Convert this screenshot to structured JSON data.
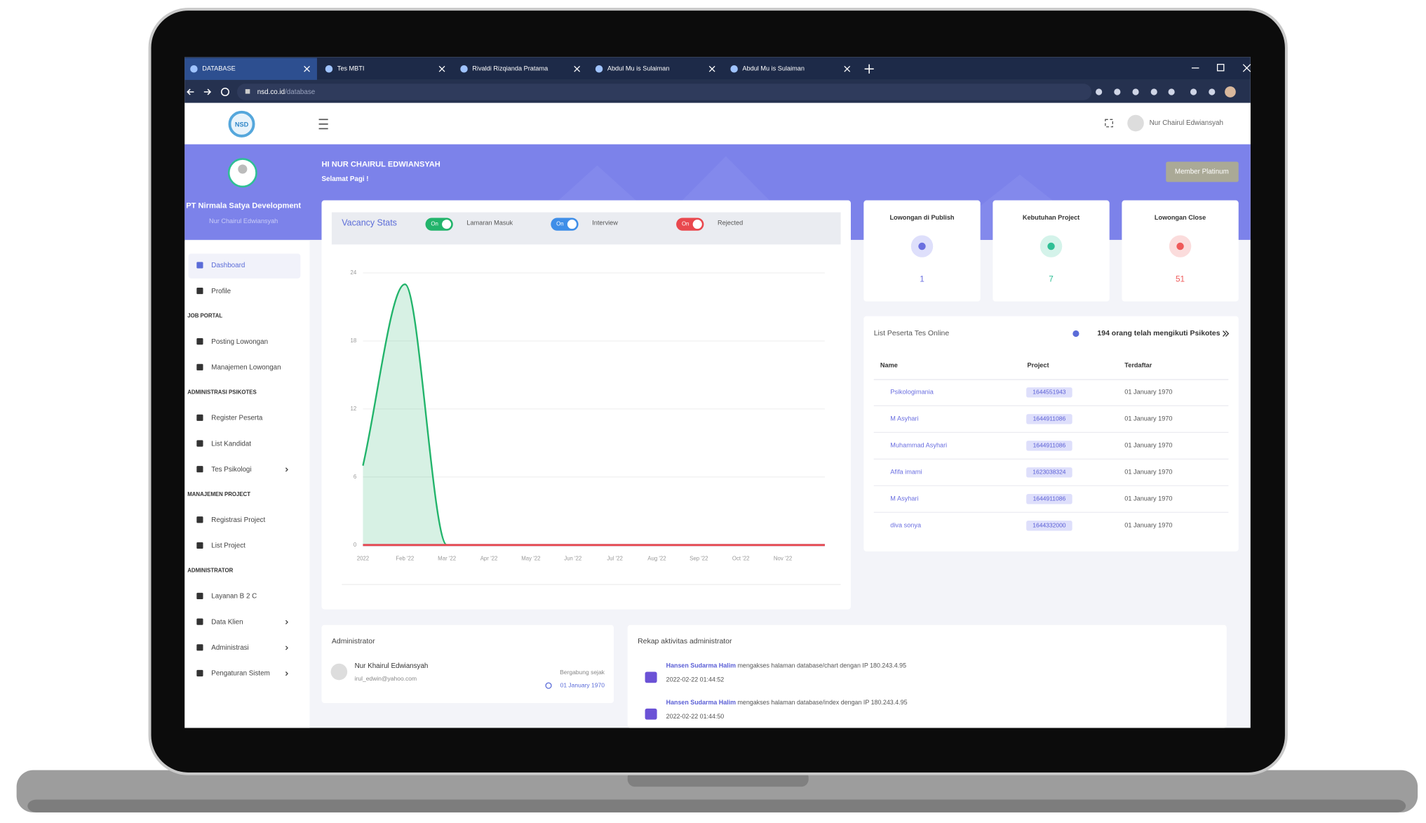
{
  "browser": {
    "tabs": [
      "DATABASE",
      "Tes MBTI",
      "Rivaldi Rizqianda Pratama",
      "Abdul Mu is Sulaiman",
      "Abdul Mu is Sulaiman"
    ],
    "url_host": "nsd.co.id",
    "url_path": "/database"
  },
  "header": {
    "logo": "NSD",
    "user": "Nur Chairul Edwiansyah"
  },
  "banner": {
    "greeting": "HI NUR CHAIRUL EDWIANSYAH",
    "subgreeting": "Selamat Pagi !",
    "badge": "Member Platinum"
  },
  "sidebar": {
    "company": "PT Nirmala Satya Development",
    "user": "Nur Chairul Edwiansyah",
    "sections": [
      {
        "items": [
          {
            "label": "Dashboard",
            "active": true
          },
          {
            "label": "Profile"
          }
        ]
      },
      {
        "heading": "JOB PORTAL",
        "items": [
          {
            "label": "Posting Lowongan"
          },
          {
            "label": "Manajemen Lowongan"
          }
        ]
      },
      {
        "heading": "ADMINISTRASI PSIKOTES",
        "items": [
          {
            "label": "Register Peserta"
          },
          {
            "label": "List Kandidat"
          },
          {
            "label": "Tes Psikologi",
            "submenu": true
          }
        ]
      },
      {
        "heading": "MANAJEMEN PROJECT",
        "items": [
          {
            "label": "Registrasi Project"
          },
          {
            "label": "List Project"
          }
        ]
      },
      {
        "heading": "ADMINISTRATOR",
        "items": [
          {
            "label": "Layanan B 2 C"
          },
          {
            "label": "Data Klien",
            "submenu": true
          },
          {
            "label": "Administrasi",
            "submenu": true
          },
          {
            "label": "Pengaturan Sistem",
            "submenu": true
          }
        ]
      }
    ]
  },
  "chart": {
    "type": "area",
    "title": "Vacancy Stats",
    "categories": [
      "2022",
      "Feb '22",
      "Mar '22",
      "Apr '22",
      "May '22",
      "Jun '22",
      "Jul '22",
      "Aug '22",
      "Sep '22",
      "Oct '22",
      "Nov '22",
      null
    ],
    "series": [
      {
        "name": "Lamaran Masuk",
        "toggle": "On",
        "color": "#22b46b",
        "fill": true,
        "values": [
          7,
          23,
          0,
          0,
          0,
          0,
          0,
          0,
          0,
          0,
          0,
          0
        ]
      },
      {
        "name": "Interview",
        "toggle": "On",
        "color": "#3f8ee8",
        "fill": false,
        "values": [
          0,
          0,
          0,
          0,
          0,
          0,
          0,
          0,
          0,
          0,
          0,
          0
        ]
      },
      {
        "name": "Rejected",
        "toggle": "On",
        "color": "#e9484e",
        "fill": false,
        "values": [
          0,
          0,
          0,
          0,
          0,
          0,
          0,
          0,
          0,
          0,
          0,
          0
        ]
      }
    ],
    "ylim": [
      0,
      24
    ],
    "yticks": [
      0,
      6,
      12,
      18,
      24
    ],
    "grid": true
  },
  "stats": [
    {
      "label": "Lowongan di Publish",
      "value": 1,
      "color": "#6b6fe0",
      "bg": "#dedffb"
    },
    {
      "label": "Kebutuhan Project",
      "value": 7,
      "color": "#2fbf95",
      "bg": "#d4f3ea"
    },
    {
      "label": "Lowongan Close",
      "value": 51,
      "color": "#ef5a5a",
      "bg": "#fbdcdc"
    }
  ],
  "table": {
    "title": "List Peserta Tes Online",
    "summary": "194 orang telah mengikuti Psikotes",
    "columns": [
      "Name",
      "Project",
      "Terdaftar"
    ],
    "rows": [
      [
        "Psikologimania",
        "1644551943",
        "01 January 1970"
      ],
      [
        "M Asyhari",
        "1644911086",
        "01 January 1970"
      ],
      [
        "Muhammad Asyhari",
        "1644911086",
        "01 January 1970"
      ],
      [
        "Afifa imami",
        "1623038324",
        "01 January 1970"
      ],
      [
        "M Asyhari",
        "1644911086",
        "01 January 1970"
      ],
      [
        "diva sonya",
        "1644332000",
        "01 January 1970"
      ]
    ]
  },
  "admin": {
    "title": "Administrator",
    "name": "Nur Khairul Edwiansyah",
    "email": "irul_edwin@yahoo.com",
    "joined_label": "Bergabung sejak",
    "joined": "01 January 1970"
  },
  "activity": {
    "title": "Rekap aktivitas administrator",
    "entries": [
      {
        "user": "Hansen Sudarma Halim",
        "action": " mengakses halaman database/chart dengan IP 180.243.4.95",
        "time": "2022-02-22 01:44:52"
      },
      {
        "user": "Hansen Sudarma Halim",
        "action": " mengakses halaman database/index dengan IP 180.243.4.95",
        "time": "2022-02-22 01:44:50"
      }
    ]
  }
}
